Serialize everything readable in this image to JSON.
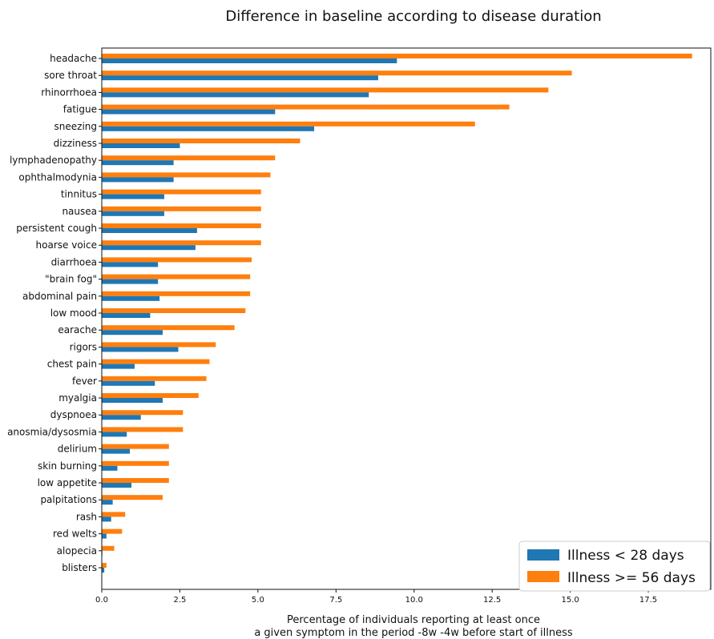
{
  "chart_data": {
    "type": "bar",
    "orientation": "horizontal",
    "title": "Difference in baseline according to disease duration",
    "xlabel_lines": [
      "Percentage of individuals reporting at least once",
      "a given symptom in the period -8w -4w before start of illness"
    ],
    "ylabel": "",
    "xlim": [
      0,
      19.5
    ],
    "xticks": [
      0.0,
      2.5,
      5.0,
      7.5,
      10.0,
      12.5,
      15.0,
      17.5
    ],
    "xtick_labels": [
      "0.0",
      "2.5",
      "5.0",
      "7.5",
      "10.0",
      "12.5",
      "15.0",
      "17.5"
    ],
    "grid": false,
    "legend_position": "bottom-right",
    "categories": [
      "headache",
      "sore throat",
      "rhinorrhoea",
      "fatigue",
      "sneezing",
      "dizziness",
      "lymphadenopathy",
      "ophthalmodynia",
      "tinnitus",
      "nausea",
      "persistent cough",
      "hoarse voice",
      "diarrhoea",
      "\"brain fog\"",
      "abdominal pain",
      "low mood",
      "earache",
      "rigors",
      "chest pain",
      "fever",
      "myalgia",
      "dyspnoea",
      "anosmia/dysosmia",
      "delirium",
      "skin burning",
      "low appetite",
      "palpitations",
      "rash",
      "red welts",
      "alopecia",
      "blisters"
    ],
    "series": [
      {
        "name": "Illness < 28 days",
        "color": "#1f77b4",
        "values": [
          9.45,
          8.85,
          8.55,
          5.55,
          6.8,
          2.5,
          2.3,
          2.3,
          2.0,
          2.0,
          3.05,
          3.0,
          1.8,
          1.8,
          1.85,
          1.55,
          1.95,
          2.45,
          1.05,
          1.7,
          1.95,
          1.25,
          0.8,
          0.9,
          0.5,
          0.95,
          0.35,
          0.3,
          0.15,
          0.02,
          0.08
        ]
      },
      {
        "name": "Illness >= 56 days",
        "color": "#ff7f0e",
        "values": [
          18.9,
          15.05,
          14.3,
          13.05,
          11.95,
          6.35,
          5.55,
          5.4,
          5.1,
          5.1,
          5.1,
          5.1,
          4.8,
          4.75,
          4.75,
          4.6,
          4.25,
          3.65,
          3.45,
          3.35,
          3.1,
          2.6,
          2.6,
          2.15,
          2.15,
          2.15,
          1.95,
          0.75,
          0.65,
          0.4,
          0.15
        ]
      }
    ]
  }
}
